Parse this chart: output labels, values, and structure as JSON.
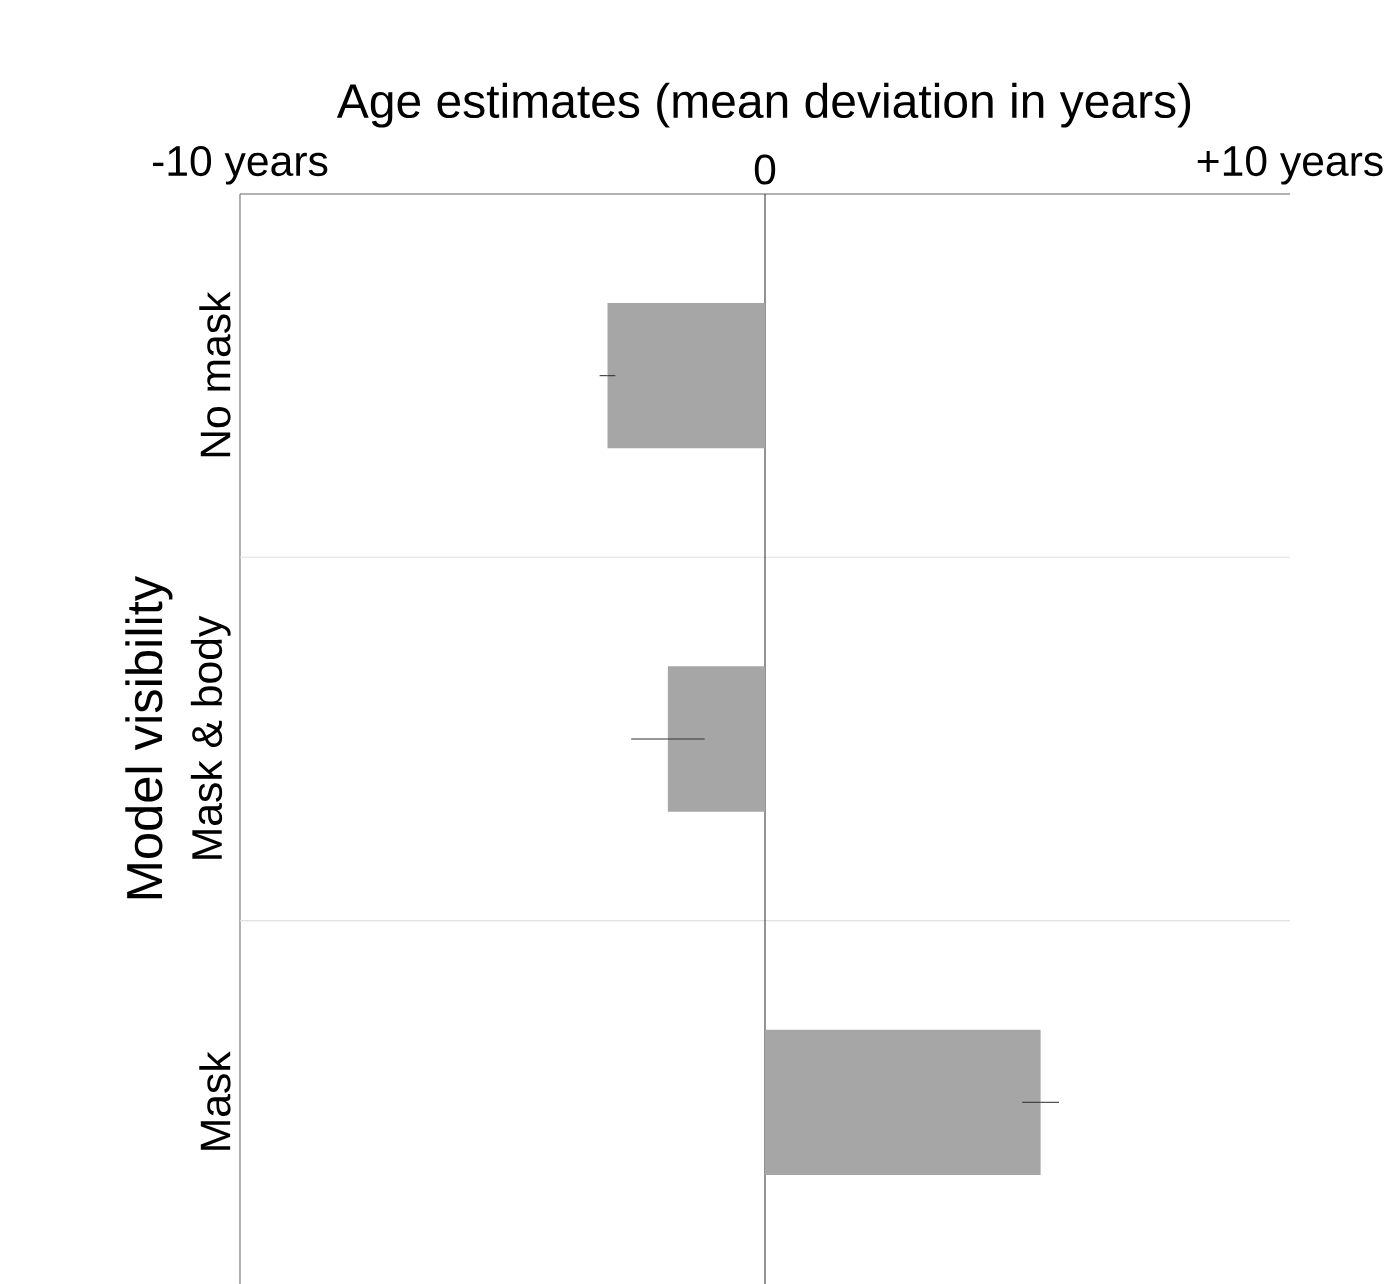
{
  "chart_data": {
    "type": "bar",
    "orientation": "horizontal",
    "xlabel": "Age estimates (mean deviation in years)",
    "ylabel": "Model visibility",
    "categories": [
      "No mask",
      "Mask & body",
      "Mask"
    ],
    "values": [
      -3.0,
      -1.85,
      5.25
    ],
    "errors": [
      0.15,
      0.7,
      0.35
    ],
    "color": "#a6a6a6",
    "xlim": [
      -10,
      10
    ],
    "xticks": [
      {
        "value": -10,
        "label": "-10 years"
      },
      0,
      {
        "value": 10,
        "label": "+10 years"
      }
    ],
    "grid": "y",
    "ref_lines": [
      {
        "axis": "x",
        "value": 0,
        "color": "#333333"
      }
    ]
  }
}
